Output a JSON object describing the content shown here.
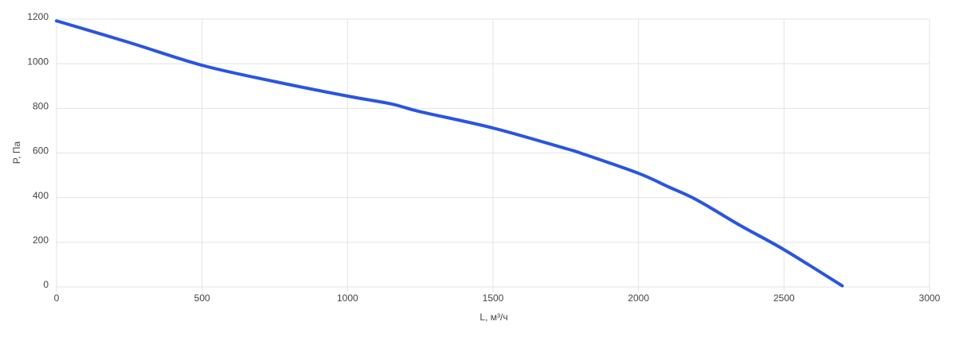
{
  "chart_data": {
    "type": "line",
    "x_label": "L, м³/ч",
    "y_label": "P, Па",
    "x": [
      0,
      250,
      500,
      750,
      1000,
      1150,
      1250,
      1500,
      1750,
      1800,
      2000,
      2100,
      2200,
      2350,
      2500,
      2700
    ],
    "series": [
      {
        "name": "P",
        "color": "#2a55e0",
        "values": [
          1192,
          1095,
          993,
          920,
          855,
          820,
          785,
          712,
          620,
          600,
          509,
          450,
          390,
          275,
          167,
          5
        ]
      }
    ],
    "xlim": [
      0,
      3000
    ],
    "xticks": [
      0,
      500,
      1000,
      1500,
      2000,
      2500,
      3000
    ],
    "ylim": [
      0,
      1200
    ],
    "yticks": [
      0,
      200,
      400,
      600,
      800,
      1000,
      1200
    ],
    "grid": true
  }
}
